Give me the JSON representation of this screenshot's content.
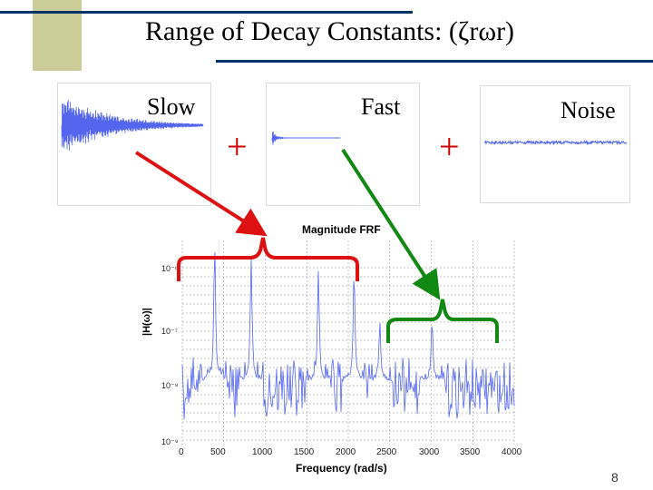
{
  "slide": {
    "title": "Range of Decay Constants: (ζrωr)",
    "slow_label": "Slow",
    "fast_label": "Fast",
    "noise_label": "Noise",
    "plus_1": "+",
    "plus_2": "+",
    "page_number": "8"
  },
  "colors": {
    "signal": "#5566ee",
    "red_arrow": "#dd1111",
    "green_arrow": "#118811",
    "deco_bar": "#cccc99",
    "deco_line": "#003366"
  },
  "chart_data": {
    "type": "line",
    "title": "Magnitude FRF",
    "xlabel": "Frequency (rad/s)",
    "ylabel": "|H(ω)|",
    "xlim": [
      0,
      4000
    ],
    "x_ticks": [
      "0",
      "500",
      "1000",
      "1500",
      "2000",
      "2500",
      "3000",
      "3500",
      "4000"
    ],
    "y_ticks": [
      "10⁻⁶",
      "10⁻⁷",
      "10⁻⁸",
      "10⁻⁹"
    ],
    "y_scale": "log",
    "grid": true,
    "peaks_rad_s": [
      390,
      830,
      1640,
      2070,
      2380,
      3010
    ]
  }
}
